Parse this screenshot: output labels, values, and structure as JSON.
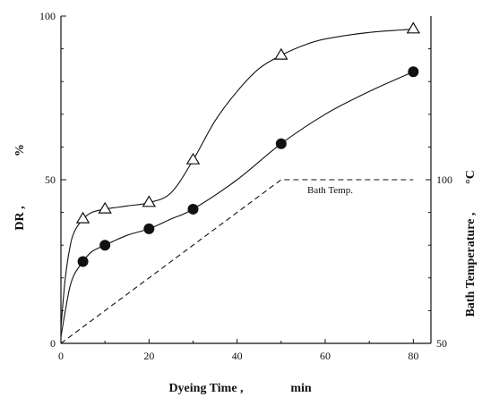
{
  "chart_data": {
    "type": "line",
    "xlabel": "Dyeing Time ,",
    "xunit": "min",
    "ylabel_left": "DR ,",
    "ylabel_left_unit": "%",
    "ylabel_right": "Bath Temperature ,",
    "ylabel_right_unit": "°C",
    "xlim": [
      0,
      84
    ],
    "ylim": [
      0,
      100
    ],
    "y2lim": [
      50,
      150
    ],
    "x_ticks": [
      0,
      20,
      40,
      60,
      80
    ],
    "y_ticks_left": [
      0,
      50,
      100
    ],
    "y_ticks_right": [
      50,
      100
    ],
    "annotation": "Bath Temp.",
    "series": [
      {
        "marker": "open-triangle",
        "points": [
          [
            5,
            38
          ],
          [
            10,
            41
          ],
          [
            20,
            43
          ],
          [
            30,
            56
          ],
          [
            50,
            88
          ],
          [
            80,
            96
          ]
        ],
        "curve": [
          [
            0,
            5
          ],
          [
            1,
            20
          ],
          [
            2,
            29
          ],
          [
            3,
            34
          ],
          [
            5,
            38
          ],
          [
            7,
            40
          ],
          [
            10,
            41
          ],
          [
            15,
            42
          ],
          [
            20,
            43
          ],
          [
            25,
            46
          ],
          [
            30,
            56
          ],
          [
            35,
            68
          ],
          [
            40,
            77
          ],
          [
            45,
            84
          ],
          [
            50,
            88
          ],
          [
            55,
            91
          ],
          [
            60,
            93
          ],
          [
            70,
            95
          ],
          [
            80,
            96
          ]
        ]
      },
      {
        "marker": "filled-circle",
        "points": [
          [
            5,
            25
          ],
          [
            10,
            30
          ],
          [
            20,
            35
          ],
          [
            30,
            41
          ],
          [
            50,
            61
          ],
          [
            80,
            83
          ]
        ],
        "curve": [
          [
            0,
            2
          ],
          [
            1,
            10
          ],
          [
            2,
            17
          ],
          [
            3,
            21
          ],
          [
            5,
            25
          ],
          [
            7,
            28
          ],
          [
            10,
            30
          ],
          [
            15,
            33
          ],
          [
            20,
            35
          ],
          [
            25,
            38
          ],
          [
            30,
            41
          ],
          [
            40,
            50
          ],
          [
            50,
            61
          ],
          [
            60,
            70
          ],
          [
            70,
            77
          ],
          [
            80,
            83
          ]
        ]
      }
    ],
    "bath_temp_line": [
      [
        0,
        50
      ],
      [
        50,
        100
      ],
      [
        80,
        100
      ]
    ]
  }
}
